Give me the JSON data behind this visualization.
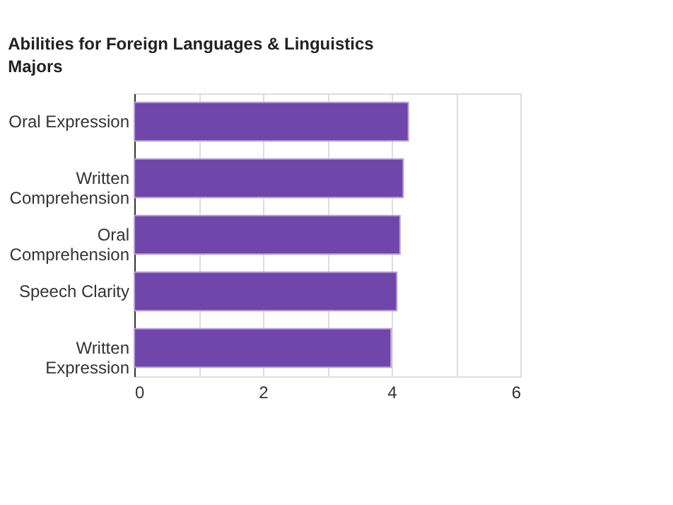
{
  "chart_data": {
    "type": "bar",
    "orientation": "horizontal",
    "title": "Abilities for Foreign Languages & Linguistics Majors",
    "categories": [
      "Oral Expression",
      "Written Comprehension",
      "Oral Comprehension",
      "Speech Clarity",
      "Written Expression"
    ],
    "values": [
      4.26,
      4.18,
      4.13,
      4.08,
      3.99
    ],
    "color": "#7046aa",
    "xlim": [
      0,
      6
    ],
    "xticks": [
      0,
      {
        "value": 1,
        "label": null
      },
      2,
      {
        "value": 3,
        "label": null
      },
      4,
      {
        "value": 5,
        "label": null
      },
      6
    ],
    "grid": "x"
  }
}
